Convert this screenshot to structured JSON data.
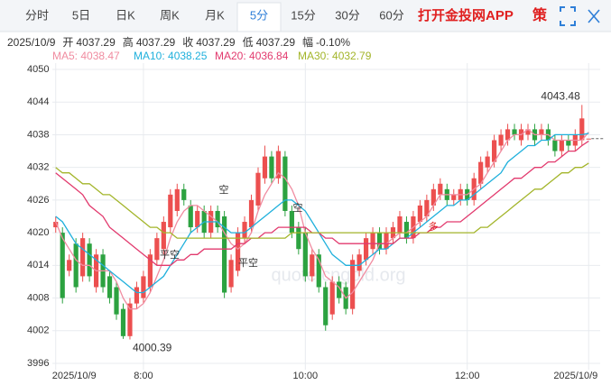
{
  "tabs": [
    {
      "label": "分时"
    },
    {
      "label": "5日"
    },
    {
      "label": "日K"
    },
    {
      "label": "周K"
    },
    {
      "label": "月K"
    },
    {
      "label": "5分",
      "active": true
    },
    {
      "label": "15分"
    },
    {
      "label": "30分"
    },
    {
      "label": "60分"
    }
  ],
  "brand": "打开金投网APP",
  "strategy_button": "策",
  "info": {
    "date": "2025/10/9",
    "fields": [
      {
        "label": "开",
        "value": "4037.29"
      },
      {
        "label": "高",
        "value": "4037.29"
      },
      {
        "label": "收",
        "value": "4037.29"
      },
      {
        "label": "低",
        "value": "4037.29"
      },
      {
        "label": "幅",
        "value": "-0.10%"
      }
    ]
  },
  "watermark": "quote.cngold.org",
  "chart_data": {
    "type": "candlestick",
    "up_color": "#ec4f4f",
    "down_color": "#2ca240",
    "ylim": [
      3996,
      4050
    ],
    "yticks": [
      4050,
      4044,
      4038,
      4032,
      4026,
      4020,
      4014,
      4008,
      4002,
      3996
    ],
    "grid": true,
    "categories": [
      "2025/10/9",
      null,
      null,
      null,
      null,
      null,
      null,
      null,
      null,
      null,
      null,
      null,
      null,
      "8:00",
      null,
      null,
      null,
      null,
      null,
      null,
      null,
      null,
      null,
      null,
      null,
      null,
      null,
      null,
      null,
      null,
      null,
      null,
      null,
      null,
      null,
      null,
      null,
      "10:00",
      null,
      null,
      null,
      null,
      null,
      null,
      null,
      null,
      null,
      null,
      null,
      null,
      null,
      null,
      null,
      null,
      null,
      null,
      null,
      null,
      null,
      null,
      null,
      "12:00",
      null,
      null,
      null,
      null,
      null,
      null,
      null,
      null,
      null,
      null,
      null,
      null,
      null,
      null,
      null,
      null,
      null,
      "2025/10/9"
    ],
    "open": [
      4021,
      4020,
      4013,
      4018,
      4012,
      4018,
      4010,
      4016,
      4012,
      4010,
      4006,
      4001,
      4007,
      4008,
      4010,
      4015,
      4017,
      4021,
      4024,
      4028,
      4025,
      4021,
      4024,
      4020,
      4024,
      4023,
      4010,
      4013,
      4019,
      4021,
      4025,
      4030,
      4034,
      4030,
      4034,
      4024,
      4021,
      4020,
      4012,
      4016,
      4010,
      4005,
      4011,
      4010,
      4006,
      4013,
      4015,
      4017,
      4020,
      4017,
      4019,
      4020,
      4022,
      4019,
      4022,
      4023,
      4025,
      4027,
      4028,
      4026,
      4026,
      4028,
      4026,
      4029,
      4032,
      4033,
      4036,
      4037,
      4039,
      4037,
      4038,
      4039,
      4038,
      4039,
      4037,
      4035,
      4037,
      4036,
      4037,
      4037.29
    ],
    "high": [
      4023,
      4021,
      4016,
      4019,
      4020,
      4019,
      4017,
      4017,
      4013,
      4011,
      4007,
      4008,
      4011,
      4013,
      4017,
      4020,
      4023,
      4028,
      4029,
      4029,
      4026,
      4025,
      4025,
      4025,
      4025,
      4024,
      4016,
      4021,
      4023,
      4027,
      4032,
      4036,
      4035,
      4036,
      4035,
      4025,
      4022,
      4021,
      4017,
      4017,
      4011,
      4012,
      4012,
      4011,
      4016,
      4017,
      4020,
      4021,
      4021,
      4021,
      4022,
      4024,
      4023,
      4024,
      4026,
      4027,
      4029,
      4030,
      4029,
      4028,
      4029,
      4029,
      4031,
      4034,
      4035,
      4038,
      4039,
      4040,
      4040,
      4040,
      4040,
      4040,
      4040,
      4040,
      4038,
      4038,
      4038,
      4039,
      4043.48,
      4037.29
    ],
    "low": [
      4020,
      4007,
      4012,
      4009,
      4011,
      4011,
      4009,
      4009,
      4007,
      4004,
      4000.5,
      4000.39,
      4006,
      4007,
      4009,
      4014,
      4016,
      4020,
      4023,
      4025,
      4020,
      4020,
      4019,
      4019,
      4020,
      4008,
      4009,
      4012,
      4018,
      4020,
      4024,
      4029,
      4029,
      4029,
      4023,
      4019,
      4016,
      4011,
      4011,
      4009,
      4002,
      4004,
      4007,
      4005,
      4005,
      4012,
      4014,
      4016,
      4016,
      4016,
      4018,
      4019,
      4018,
      4018,
      4021,
      4022,
      4024,
      4026,
      4025,
      4025,
      4025,
      4025,
      4025,
      4028,
      4031,
      4032,
      4035,
      4036,
      4037,
      4036,
      4037,
      4036,
      4037,
      4036,
      4034,
      4034,
      4035,
      4035,
      4036,
      4037.29
    ],
    "close": [
      4022,
      4008,
      4015,
      4010,
      4019,
      4012,
      4016,
      4010,
      4008,
      4005,
      4001,
      4007,
      4010,
      4012,
      4016,
      4019,
      4022,
      4027,
      4028,
      4026,
      4021,
      4024,
      4020,
      4024,
      4021,
      4009,
      4015,
      4020,
      4022,
      4026,
      4031,
      4034,
      4030,
      4035,
      4024,
      4020,
      4017,
      4012,
      4016,
      4010,
      4003,
      4011,
      4008,
      4006,
      4015,
      4016,
      4019,
      4020,
      4017,
      4020,
      4021,
      4023,
      4019,
      4023,
      4025,
      4026,
      4028,
      4029,
      4026,
      4027,
      4028,
      4026,
      4030,
      4033,
      4034,
      4037,
      4038,
      4039,
      4038,
      4039,
      4039,
      4037,
      4039,
      4037,
      4035,
      4037,
      4036,
      4038,
      4041,
      4037.29
    ],
    "series": [
      {
        "name": "MA5: 4038.47",
        "color": "#f08ca0",
        "values": [
          4022,
          4019,
          4017,
          4015,
          4014,
          4014,
          4013,
          4013,
          4013,
          4011,
          4008,
          4006,
          4006,
          4007,
          4009,
          4012,
          4015,
          4019,
          4022,
          4024,
          4025,
          4025,
          4024,
          4023,
          4022,
          4020,
          4018,
          4017,
          4018,
          4020,
          4024,
          4027,
          4029,
          4031,
          4030,
          4028,
          4025,
          4020,
          4017,
          4015,
          4012,
          4011,
          4010,
          4008,
          4009,
          4011,
          4013,
          4015,
          4018,
          4018,
          4019,
          4020,
          4020,
          4021,
          4022,
          4023,
          4025,
          4027,
          4027,
          4027,
          4027,
          4027,
          4028,
          4029,
          4031,
          4033,
          4035,
          4037,
          4038,
          4038,
          4039,
          4038,
          4038,
          4038,
          4037,
          4037,
          4037,
          4037,
          4037,
          4038.47
        ]
      },
      {
        "name": "MA10: 4038.25",
        "color": "#1fb0dc",
        "values": [
          4023,
          4022,
          4020,
          4018,
          4017,
          4016,
          4015,
          4014,
          4013,
          4012,
          4011,
          4010,
          4009,
          4009,
          4010,
          4011,
          4012,
          4014,
          4016,
          4018,
          4020,
          4021,
          4022,
          4022,
          4022,
          4021,
          4020,
          4020,
          4020,
          4021,
          4022,
          4023,
          4024,
          4025,
          4026,
          4026,
          4025,
          4024,
          4022,
          4020,
          4018,
          4016,
          4015,
          4014,
          4014,
          4014,
          4015,
          4016,
          4017,
          4017,
          4018,
          4019,
          4019,
          4020,
          4021,
          4022,
          4023,
          4024,
          4025,
          4025,
          4026,
          4026,
          4027,
          4028,
          4029,
          4030,
          4031,
          4033,
          4034,
          4035,
          4036,
          4036,
          4037,
          4037,
          4038,
          4038,
          4038,
          4038,
          4038,
          4038.25
        ]
      },
      {
        "name": "MA20: 4036.84",
        "color": "#e23a6e",
        "values": [
          4031,
          4030,
          4029,
          4028,
          4027,
          4025,
          4024,
          4023,
          4021,
          4020,
          4019,
          4018,
          4017,
          4016,
          4015,
          4014,
          4014,
          4014,
          4015,
          4015,
          4016,
          4016,
          4017,
          4017,
          4017,
          4017,
          4017,
          4018,
          4018,
          4019,
          4019,
          4020,
          4020,
          4021,
          4021,
          4021,
          4021,
          4021,
          4020,
          4020,
          4019,
          4019,
          4018,
          4018,
          4018,
          4018,
          4018,
          4018,
          4018,
          4018,
          4018,
          4019,
          4019,
          4019,
          4020,
          4020,
          4021,
          4021,
          4022,
          4022,
          4022,
          4023,
          4024,
          4025,
          4026,
          4027,
          4028,
          4029,
          4030,
          4030,
          4031,
          4032,
          4032,
          4033,
          4033,
          4034,
          4035,
          4035,
          4036,
          4036.84
        ]
      },
      {
        "name": "MA30: 4032.79",
        "color": "#a3b52a",
        "values": [
          4032,
          4031,
          4031,
          4030,
          4029,
          4029,
          4028,
          4027,
          4027,
          4026,
          4025,
          4024,
          4023,
          4022,
          4021,
          4021,
          4020,
          4020,
          4019,
          4019,
          4019,
          4019,
          4019,
          4019,
          4019,
          4019,
          4019,
          4019,
          4019,
          4019,
          4019,
          4019,
          4019,
          4019,
          4019,
          4020,
          4020,
          4020,
          4020,
          4020,
          4020,
          4020,
          4020,
          4020,
          4020,
          4020,
          4020,
          4020,
          4020,
          4020,
          4020,
          4020,
          4020,
          4020,
          4020,
          4020,
          4020,
          4020,
          4020,
          4020,
          4020,
          4020,
          4020,
          4021,
          4021,
          4022,
          4023,
          4024,
          4025,
          4026,
          4027,
          4028,
          4028,
          4029,
          4030,
          4031,
          4031,
          4032,
          4032,
          4032.79
        ]
      }
    ],
    "signals": [
      "平空",
      "空",
      "平空",
      "空",
      "多"
    ]
  }
}
